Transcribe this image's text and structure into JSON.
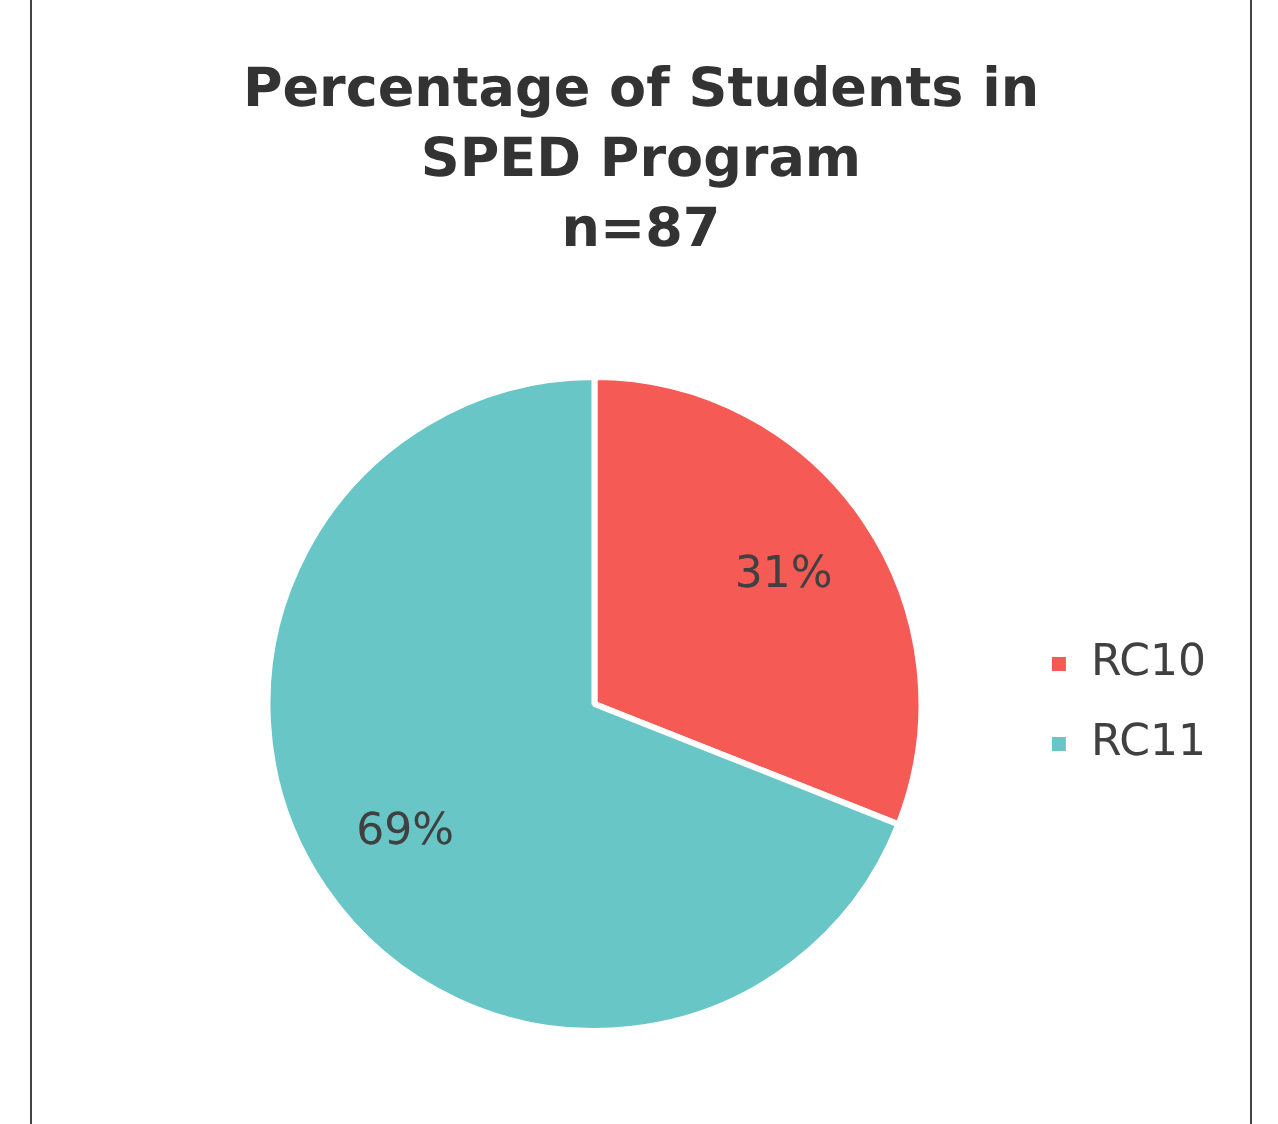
{
  "chart_data": {
    "type": "pie",
    "title": "Percentage of Students in SPED Program",
    "subtitle": "n=87",
    "categories": [
      "RC10",
      "RC11"
    ],
    "values": [
      31,
      69
    ],
    "colors": [
      "#f55a55",
      "#68c6c6"
    ],
    "value_labels": [
      "31%",
      "69%"
    ],
    "legend": "right"
  }
}
